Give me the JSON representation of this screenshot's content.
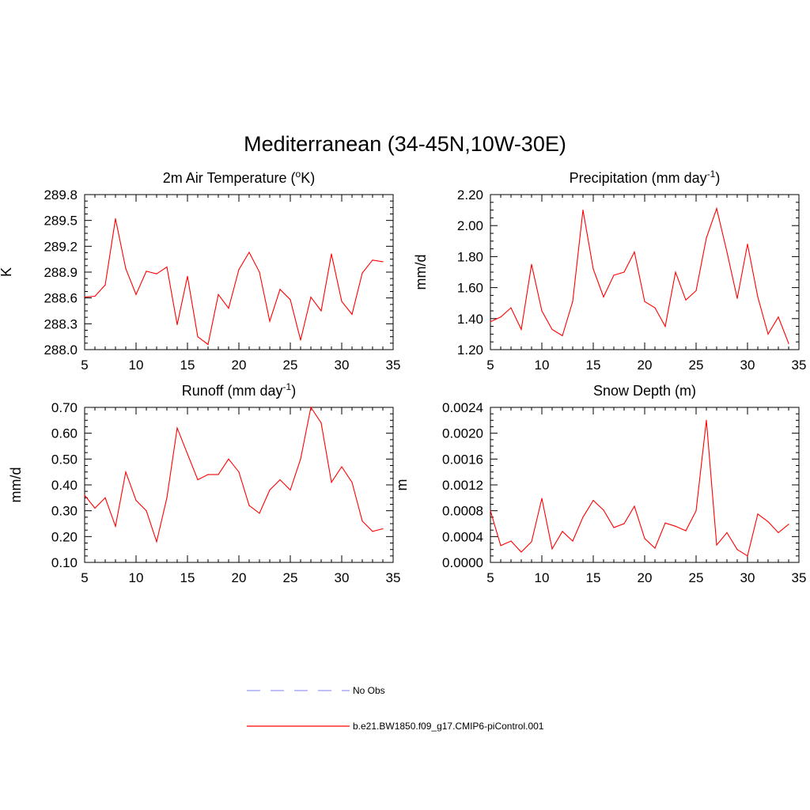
{
  "figure": {
    "title": "Mediterranean (34-45N,10W-30E)",
    "line_color": "#ff0000",
    "obs_color": "#9999ff"
  },
  "legend": {
    "placement": "bottom-center",
    "entries": [
      {
        "label": "No Obs",
        "style": "dashed",
        "color": "#9999ff"
      },
      {
        "label": "b.e21.BW1850.f09_g17.CMIP6-piControl.001",
        "style": "solid",
        "color": "#ff0000"
      }
    ]
  },
  "chart_data": [
    {
      "type": "line",
      "title": "2m Air Temperature (",
      "title_sup": "o",
      "title_after": "K)",
      "ylabel": "K",
      "xlim": [
        5,
        35
      ],
      "ylim": [
        288.0,
        289.8
      ],
      "xticks": [
        "5",
        "10",
        "15",
        "20",
        "25",
        "30",
        "35"
      ],
      "yticks": [
        "288.0",
        "288.3",
        "288.6",
        "288.9",
        "289.2",
        "289.5",
        "289.8"
      ],
      "x": [
        5,
        6,
        7,
        8,
        9,
        10,
        11,
        12,
        13,
        14,
        15,
        16,
        17,
        18,
        19,
        20,
        21,
        22,
        23,
        24,
        25,
        26,
        27,
        28,
        29,
        30,
        31,
        32,
        33,
        34
      ],
      "series": [
        {
          "name": "b.e21.BW1850.f09_g17.CMIP6-piControl.001",
          "values": [
            288.61,
            288.62,
            288.75,
            289.52,
            288.94,
            288.64,
            288.91,
            288.88,
            288.96,
            288.29,
            288.85,
            288.15,
            288.06,
            288.64,
            288.48,
            288.93,
            289.13,
            288.9,
            288.33,
            288.7,
            288.58,
            288.11,
            288.61,
            288.45,
            289.11,
            288.56,
            288.41,
            288.89,
            289.04,
            289.02
          ]
        }
      ]
    },
    {
      "type": "line",
      "title": "Precipitation (mm day",
      "title_sup": "-1",
      "title_after": ")",
      "ylabel": "mm/d",
      "xlim": [
        5,
        35
      ],
      "ylim": [
        1.2,
        2.2
      ],
      "xticks": [
        "5",
        "10",
        "15",
        "20",
        "25",
        "30",
        "35"
      ],
      "yticks": [
        "1.20",
        "1.40",
        "1.60",
        "1.80",
        "2.00",
        "2.20"
      ],
      "x": [
        5,
        6,
        7,
        8,
        9,
        10,
        11,
        12,
        13,
        14,
        15,
        16,
        17,
        18,
        19,
        20,
        21,
        22,
        23,
        24,
        25,
        26,
        27,
        28,
        29,
        30,
        31,
        32,
        33,
        34
      ],
      "series": [
        {
          "name": "b.e21.BW1850.f09_g17.CMIP6-piControl.001",
          "values": [
            1.38,
            1.41,
            1.47,
            1.33,
            1.75,
            1.45,
            1.33,
            1.29,
            1.51,
            2.1,
            1.72,
            1.54,
            1.68,
            1.7,
            1.83,
            1.51,
            1.47,
            1.35,
            1.7,
            1.52,
            1.58,
            1.92,
            2.11,
            1.83,
            1.53,
            1.88,
            1.54,
            1.3,
            1.41,
            1.24
          ]
        }
      ]
    },
    {
      "type": "line",
      "title": "Runoff (mm day",
      "title_sup": "-1",
      "title_after": ")",
      "ylabel": "mm/d",
      "xlim": [
        5,
        35
      ],
      "ylim": [
        0.1,
        0.7
      ],
      "xticks": [
        "5",
        "10",
        "15",
        "20",
        "25",
        "30",
        "35"
      ],
      "yticks": [
        "0.10",
        "0.20",
        "0.30",
        "0.40",
        "0.50",
        "0.60",
        "0.70"
      ],
      "x": [
        5,
        6,
        7,
        8,
        9,
        10,
        11,
        12,
        13,
        14,
        15,
        16,
        17,
        18,
        19,
        20,
        21,
        22,
        23,
        24,
        25,
        26,
        27,
        28,
        29,
        30,
        31,
        32,
        33,
        34
      ],
      "series": [
        {
          "name": "b.e21.BW1850.f09_g17.CMIP6-piControl.001",
          "values": [
            0.36,
            0.31,
            0.35,
            0.24,
            0.45,
            0.34,
            0.3,
            0.18,
            0.35,
            0.62,
            0.52,
            0.42,
            0.44,
            0.44,
            0.5,
            0.45,
            0.32,
            0.29,
            0.38,
            0.42,
            0.38,
            0.5,
            0.7,
            0.64,
            0.41,
            0.47,
            0.41,
            0.26,
            0.22,
            0.23
          ]
        }
      ]
    },
    {
      "type": "line",
      "title": "Snow Depth (m)",
      "title_sup": "",
      "title_after": "",
      "ylabel": "m",
      "xlim": [
        5,
        35
      ],
      "ylim": [
        0.0,
        0.0024
      ],
      "xticks": [
        "5",
        "10",
        "15",
        "20",
        "25",
        "30",
        "35"
      ],
      "yticks": [
        "0.0000",
        "0.0004",
        "0.0008",
        "0.0012",
        "0.0016",
        "0.0020",
        "0.0024"
      ],
      "x": [
        5,
        6,
        7,
        8,
        9,
        10,
        11,
        12,
        13,
        14,
        15,
        16,
        17,
        18,
        19,
        20,
        21,
        22,
        23,
        24,
        25,
        26,
        27,
        28,
        29,
        30,
        31,
        32,
        33,
        34
      ],
      "series": [
        {
          "name": "b.e21.BW1850.f09_g17.CMIP6-piControl.001",
          "values": [
            0.0008,
            0.00026,
            0.00033,
            0.00016,
            0.00032,
            0.00099,
            0.00021,
            0.00048,
            0.00033,
            0.0007,
            0.00096,
            0.00081,
            0.00054,
            0.0006,
            0.00087,
            0.00037,
            0.00022,
            0.00061,
            0.00056,
            0.00049,
            0.0008,
            0.0022,
            0.00027,
            0.00046,
            0.0002,
            0.0001,
            0.00075,
            0.00063,
            0.00046,
            0.00059
          ]
        }
      ]
    }
  ]
}
